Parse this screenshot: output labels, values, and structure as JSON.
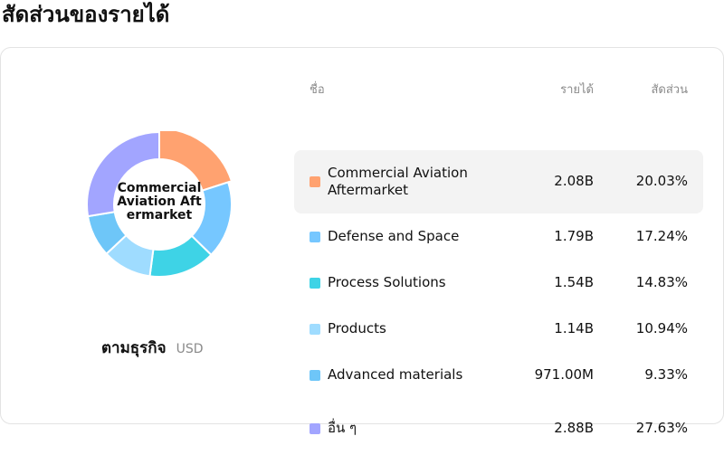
{
  "page": {
    "title": "สัดส่วนของรายได้"
  },
  "donut": {
    "center_label": "Commercial Aviation Aftermarket"
  },
  "subtitle": {
    "segment": "ตามธุรกิจ",
    "currency": "USD"
  },
  "table": {
    "headers": {
      "name": "ชื่อ",
      "revenue": "รายได้",
      "share": "สัดส่วน"
    },
    "rows": [
      {
        "name": "Commercial Aviation Aftermarket",
        "revenue": "2.08B",
        "share": "20.03%",
        "color": "#ffa270",
        "selected": true
      },
      {
        "name": "Defense and Space",
        "revenue": "1.79B",
        "share": "17.24%",
        "color": "#76c7ff",
        "selected": false
      },
      {
        "name": "Process Solutions",
        "revenue": "1.54B",
        "share": "14.83%",
        "color": "#3ed3e6",
        "selected": false
      },
      {
        "name": "Products",
        "revenue": "1.14B",
        "share": "10.94%",
        "color": "#9fdcff",
        "selected": false
      },
      {
        "name": "Advanced materials",
        "revenue": "971.00M",
        "share": "9.33%",
        "color": "#6ec6f8",
        "selected": false
      },
      {
        "name": "อื่น ๆ",
        "revenue": "2.88B",
        "share": "27.63%",
        "color": "#a2a5ff",
        "selected": false
      }
    ]
  },
  "chart_data": {
    "type": "pie",
    "donut": true,
    "title": "สัดส่วนของรายได้",
    "currency": "USD",
    "categories": [
      "Commercial Aviation Aftermarket",
      "Defense and Space",
      "Process Solutions",
      "Products",
      "Advanced materials",
      "อื่น ๆ"
    ],
    "values": [
      20.03,
      17.24,
      14.83,
      10.94,
      9.33,
      27.63
    ],
    "revenue_labels": [
      "2.08B",
      "1.79B",
      "1.54B",
      "1.14B",
      "971.00M",
      "2.88B"
    ],
    "colors": [
      "#ffa270",
      "#76c7ff",
      "#3ed3e6",
      "#9fdcff",
      "#6ec6f8",
      "#a2a5ff"
    ],
    "highlighted": "Commercial Aviation Aftermarket"
  }
}
